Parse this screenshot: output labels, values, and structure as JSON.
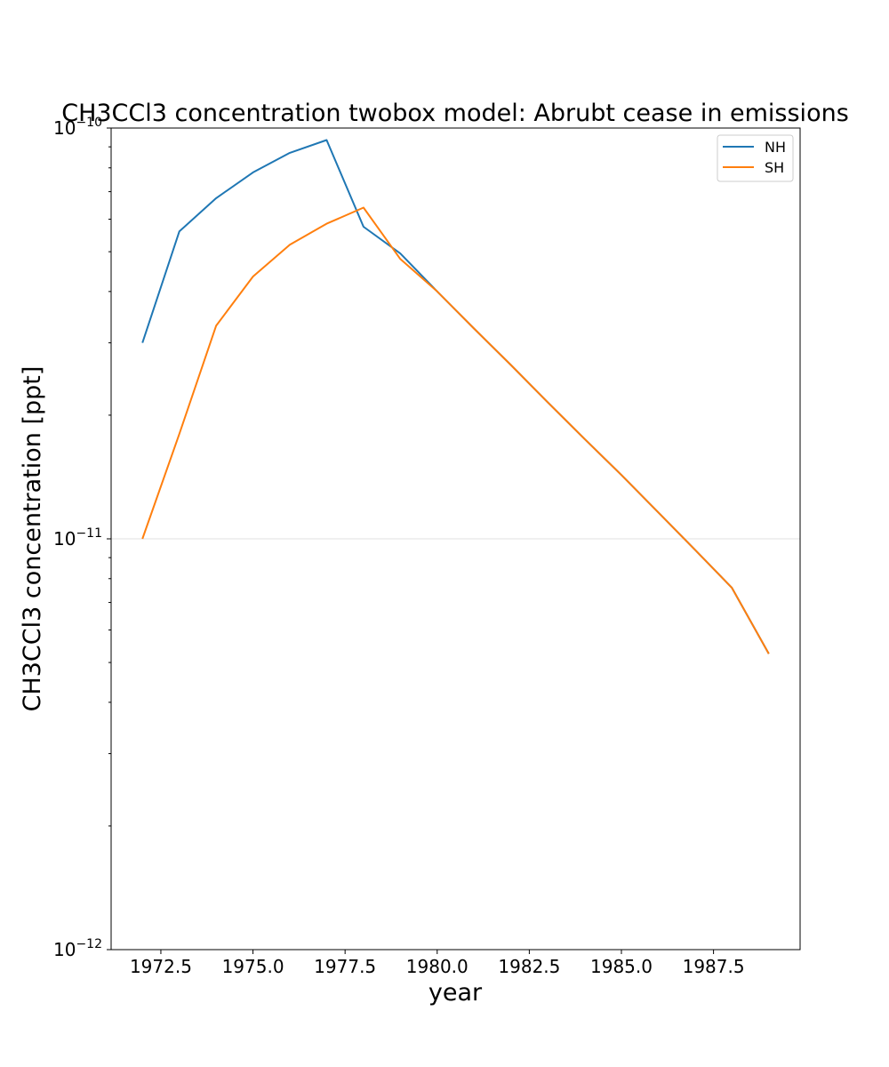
{
  "chart_data": {
    "type": "line",
    "title": "CH3CCl3 concentration twobox model: Abrubt cease in emissions",
    "xlabel": "year",
    "ylabel": "CH3CCl3 concentration [ppt]",
    "xlim": [
      1971.15,
      1989.85
    ],
    "ylim": [
      1e-12,
      1e-10
    ],
    "yscale": "log",
    "grid": "y-major",
    "legend_position": "top-right",
    "x_ticks": [
      1972.5,
      1975.0,
      1977.5,
      1980.0,
      1982.5,
      1985.0,
      1987.5
    ],
    "x_tick_labels": [
      "1972.5",
      "1975.0",
      "1977.5",
      "1980.0",
      "1982.5",
      "1985.0",
      "1987.5"
    ],
    "y_ticks": [
      {
        "value": 1e-12,
        "base": "10",
        "exponent": "−12"
      },
      {
        "value": 1e-11,
        "base": "10",
        "exponent": "−11"
      },
      {
        "value": 1e-10,
        "base": "10",
        "exponent": "−10"
      }
    ],
    "x": [
      1972,
      1973,
      1974,
      1975,
      1976,
      1977,
      1978,
      1979,
      1980,
      1981,
      1982,
      1983,
      1984,
      1985,
      1986,
      1987,
      1988,
      1989
    ],
    "series": [
      {
        "name": "NH",
        "color": "#1f77b4",
        "values": [
          3e-11,
          5.6e-11,
          6.75e-11,
          7.8e-11,
          8.7e-11,
          9.35e-11,
          5.75e-11,
          4.95e-11,
          4e-11,
          3.25e-11,
          2.65e-11,
          2.15e-11,
          1.75e-11,
          1.43e-11,
          1.16e-11,
          9.4e-12,
          7.6e-12,
          5.25e-12
        ]
      },
      {
        "name": "SH",
        "color": "#ff7f0e",
        "values": [
          1e-11,
          1.8e-11,
          3.3e-11,
          4.35e-11,
          5.2e-11,
          5.85e-11,
          6.4e-11,
          4.8e-11,
          4e-11,
          3.25e-11,
          2.65e-11,
          2.15e-11,
          1.75e-11,
          1.43e-11,
          1.16e-11,
          9.4e-12,
          7.6e-12,
          5.25e-12
        ]
      }
    ]
  }
}
